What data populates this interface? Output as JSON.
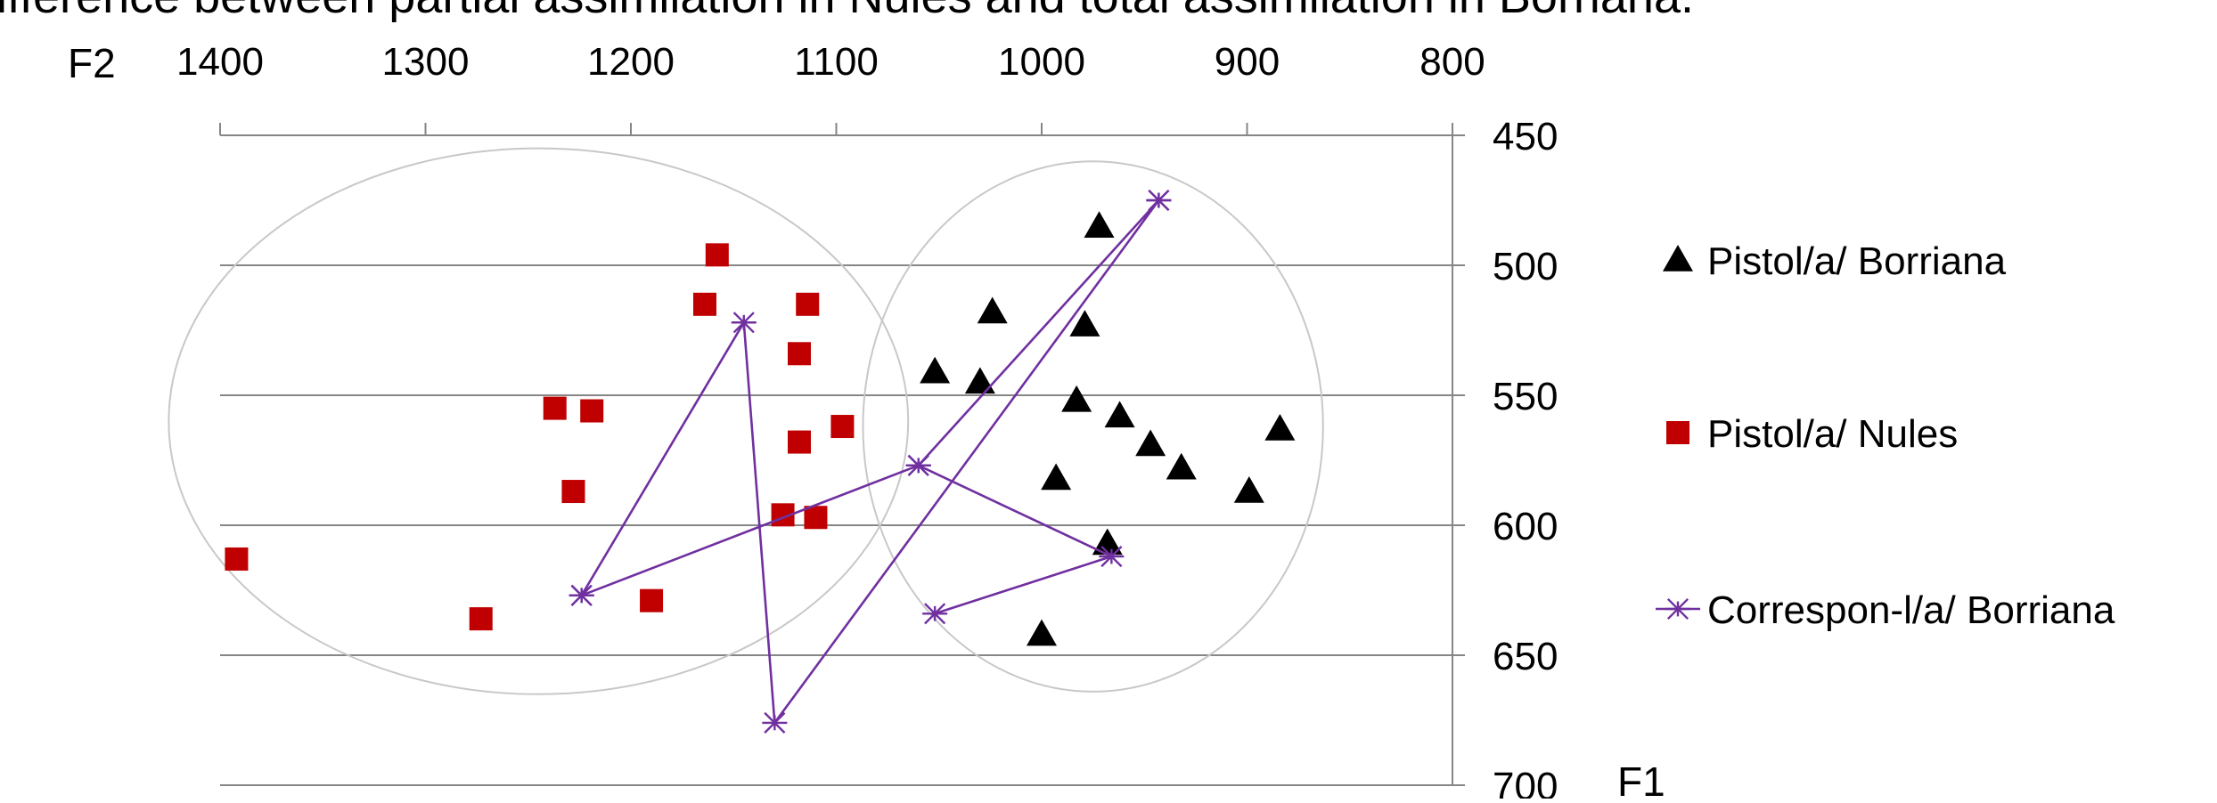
{
  "header": {
    "cut_title": "ifference between partial assimilation in Nules and total assimilation in Borriana."
  },
  "chart_data": {
    "type": "scatter",
    "xlabel": "F2",
    "ylabel": "F1",
    "x_reversed": true,
    "y_reversed": true,
    "x_axis_position": "top",
    "y_axis_position": "right",
    "xlim": [
      1400,
      800
    ],
    "ylim": [
      450,
      700
    ],
    "x_ticks": [
      1400,
      1300,
      1200,
      1100,
      1000,
      900,
      800
    ],
    "y_ticks": [
      450,
      500,
      550,
      600,
      650,
      700
    ],
    "grid": "horizontal",
    "legend_position": "right",
    "series": [
      {
        "name": "Pistol/a/ Borriana",
        "marker": "triangle",
        "color": "#000000",
        "connected": false,
        "points": [
          {
            "x": 972,
            "y": 485
          },
          {
            "x": 1024,
            "y": 518
          },
          {
            "x": 979,
            "y": 523
          },
          {
            "x": 1052,
            "y": 541
          },
          {
            "x": 1030,
            "y": 545
          },
          {
            "x": 983,
            "y": 552
          },
          {
            "x": 962,
            "y": 558
          },
          {
            "x": 947,
            "y": 569
          },
          {
            "x": 932,
            "y": 578
          },
          {
            "x": 884,
            "y": 563
          },
          {
            "x": 899,
            "y": 587
          },
          {
            "x": 993,
            "y": 582
          },
          {
            "x": 968,
            "y": 607
          },
          {
            "x": 1000,
            "y": 642
          }
        ]
      },
      {
        "name": "Pistol/a/ Nules",
        "marker": "square",
        "color": "#c00000",
        "connected": false,
        "points": [
          {
            "x": 1158,
            "y": 496
          },
          {
            "x": 1164,
            "y": 515
          },
          {
            "x": 1114,
            "y": 515
          },
          {
            "x": 1118,
            "y": 534
          },
          {
            "x": 1237,
            "y": 555
          },
          {
            "x": 1219,
            "y": 556
          },
          {
            "x": 1097,
            "y": 562
          },
          {
            "x": 1118,
            "y": 568
          },
          {
            "x": 1228,
            "y": 587
          },
          {
            "x": 1126,
            "y": 596
          },
          {
            "x": 1110,
            "y": 597
          },
          {
            "x": 1392,
            "y": 613
          },
          {
            "x": 1190,
            "y": 629
          },
          {
            "x": 1273,
            "y": 636
          }
        ]
      },
      {
        "name": "Correspon-l/a/ Borriana",
        "marker": "star",
        "color": "#7030a0",
        "connected": true,
        "points": [
          {
            "x": 1224,
            "y": 627
          },
          {
            "x": 1145,
            "y": 522
          },
          {
            "x": 1130,
            "y": 676
          },
          {
            "x": 943,
            "y": 475
          },
          {
            "x": 943,
            "y": 475
          },
          {
            "x": 1060,
            "y": 577
          },
          {
            "x": 1224,
            "y": 627
          },
          {
            "x": 1060,
            "y": 577
          },
          {
            "x": 966,
            "y": 612
          },
          {
            "x": 1052,
            "y": 634
          }
        ]
      }
    ],
    "ellipses": [
      {
        "cx": 1245,
        "cy": 560,
        "rx": 180,
        "ry": 105,
        "color": "#c8c8c8"
      },
      {
        "cx": 975,
        "cy": 562,
        "rx": 112,
        "ry": 102,
        "color": "#c8c8c8"
      }
    ],
    "colors": {
      "axis": "#868686",
      "grid": "#868686",
      "ellipse": "#c8c8c8"
    }
  }
}
